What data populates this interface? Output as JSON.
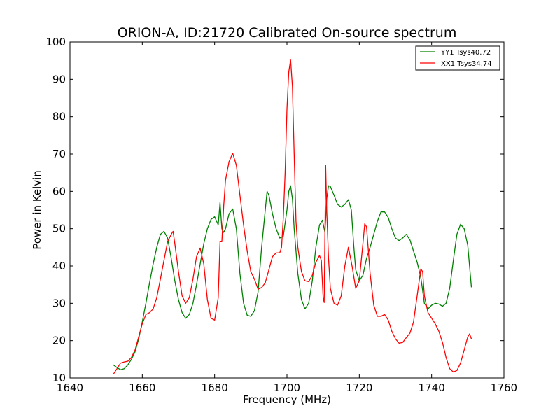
{
  "chart_data": {
    "type": "line",
    "title": "ORION-A, ID:21720 Calibrated On-source spectrum",
    "xlabel": "Frequency (MHz)",
    "ylabel": "Power in Kelvin",
    "xlim": [
      1640,
      1760
    ],
    "ylim": [
      10,
      100
    ],
    "xticks": [
      1640,
      1660,
      1680,
      1700,
      1720,
      1740,
      1760
    ],
    "yticks": [
      10,
      20,
      30,
      40,
      50,
      60,
      70,
      80,
      90,
      100
    ],
    "grid": false,
    "legend_position": "top-right",
    "series": [
      {
        "name": "YY1 Tsys40.72",
        "color": "#008000",
        "points": [
          [
            1652,
            13.5
          ],
          [
            1653,
            12.8
          ],
          [
            1654,
            12.2
          ],
          [
            1655,
            12.5
          ],
          [
            1656,
            13.5
          ],
          [
            1657,
            15.0
          ],
          [
            1658,
            17.0
          ],
          [
            1659,
            20.5
          ],
          [
            1660,
            25.0
          ],
          [
            1661,
            30.0
          ],
          [
            1662,
            35.5
          ],
          [
            1663,
            40.5
          ],
          [
            1664,
            45.0
          ],
          [
            1665,
            48.5
          ],
          [
            1666,
            49.3
          ],
          [
            1667,
            47.5
          ],
          [
            1668,
            42.0
          ],
          [
            1669,
            36.0
          ],
          [
            1670,
            31.0
          ],
          [
            1671,
            27.5
          ],
          [
            1672,
            26.0
          ],
          [
            1673,
            27.0
          ],
          [
            1674,
            30.0
          ],
          [
            1675,
            35.0
          ],
          [
            1676,
            40.5
          ],
          [
            1677,
            46.0
          ],
          [
            1678,
            50.0
          ],
          [
            1679,
            52.5
          ],
          [
            1680,
            53.2
          ],
          [
            1681,
            51.0
          ],
          [
            1681.5,
            57.0
          ],
          [
            1682,
            50.0
          ],
          [
            1682.5,
            49.0
          ],
          [
            1683,
            50.0
          ],
          [
            1684,
            54.0
          ],
          [
            1685,
            55.3
          ],
          [
            1686,
            50.0
          ],
          [
            1687,
            38.0
          ],
          [
            1688,
            30.0
          ],
          [
            1689,
            26.8
          ],
          [
            1690,
            26.5
          ],
          [
            1691,
            28.0
          ],
          [
            1692,
            33.0
          ],
          [
            1693,
            45.0
          ],
          [
            1694,
            55.0
          ],
          [
            1694.5,
            60.0
          ],
          [
            1695,
            59.0
          ],
          [
            1696,
            54.0
          ],
          [
            1697,
            50.0
          ],
          [
            1698,
            47.5
          ],
          [
            1699,
            48.0
          ],
          [
            1700,
            55.0
          ],
          [
            1700.5,
            60.0
          ],
          [
            1701,
            61.5
          ],
          [
            1701.5,
            58.0
          ],
          [
            1702,
            50.0
          ],
          [
            1703,
            38.0
          ],
          [
            1704,
            31.0
          ],
          [
            1705,
            28.5
          ],
          [
            1706,
            30.0
          ],
          [
            1707,
            36.0
          ],
          [
            1708,
            45.0
          ],
          [
            1709,
            51.0
          ],
          [
            1709.8,
            52.3
          ],
          [
            1710.5,
            49.0
          ],
          [
            1711,
            58.0
          ],
          [
            1711.5,
            61.5
          ],
          [
            1712,
            61.3
          ],
          [
            1713,
            59.0
          ],
          [
            1714,
            56.5
          ],
          [
            1715,
            55.8
          ],
          [
            1716,
            56.5
          ],
          [
            1717,
            57.8
          ],
          [
            1717.8,
            55.0
          ],
          [
            1718.5,
            45.0
          ],
          [
            1719,
            39.0
          ],
          [
            1720,
            36.0
          ],
          [
            1721,
            37.5
          ],
          [
            1722,
            42.0
          ],
          [
            1723,
            45.0
          ],
          [
            1724,
            48.5
          ],
          [
            1725,
            52.0
          ],
          [
            1726,
            54.5
          ],
          [
            1727,
            54.5
          ],
          [
            1728,
            53.0
          ],
          [
            1729,
            50.0
          ],
          [
            1730,
            47.5
          ],
          [
            1731,
            46.8
          ],
          [
            1732,
            47.5
          ],
          [
            1733,
            48.5
          ],
          [
            1734,
            47.0
          ],
          [
            1735,
            44.0
          ],
          [
            1736,
            41.0
          ],
          [
            1737,
            37.0
          ],
          [
            1738,
            30.0
          ],
          [
            1739,
            28.5
          ],
          [
            1740,
            29.5
          ],
          [
            1741,
            30.0
          ],
          [
            1742,
            29.8
          ],
          [
            1743,
            29.2
          ],
          [
            1744,
            30.0
          ],
          [
            1745,
            34.0
          ],
          [
            1746,
            41.5
          ],
          [
            1747,
            48.5
          ],
          [
            1748,
            51.2
          ],
          [
            1749,
            50.0
          ],
          [
            1750,
            45.5
          ],
          [
            1751,
            34.3
          ]
        ]
      },
      {
        "name": "XX1 Tsys34.74",
        "color": "#ff0000",
        "points": [
          [
            1652,
            11.0
          ],
          [
            1653,
            12.5
          ],
          [
            1654,
            14.0
          ],
          [
            1655,
            14.3
          ],
          [
            1656,
            14.5
          ],
          [
            1657,
            15.5
          ],
          [
            1658,
            17.5
          ],
          [
            1659,
            21.0
          ],
          [
            1660,
            24.5
          ],
          [
            1661,
            27.0
          ],
          [
            1662,
            27.5
          ],
          [
            1663,
            28.5
          ],
          [
            1664,
            31.5
          ],
          [
            1665,
            36.5
          ],
          [
            1666,
            41.5
          ],
          [
            1667,
            46.5
          ],
          [
            1668,
            48.5
          ],
          [
            1668.5,
            49.3
          ],
          [
            1669,
            46.0
          ],
          [
            1670,
            38.5
          ],
          [
            1671,
            32.0
          ],
          [
            1672,
            30.0
          ],
          [
            1673,
            31.5
          ],
          [
            1674,
            36.5
          ],
          [
            1675,
            42.5
          ],
          [
            1676,
            44.8
          ],
          [
            1677,
            40.5
          ],
          [
            1678,
            31.0
          ],
          [
            1679,
            26.0
          ],
          [
            1680,
            25.5
          ],
          [
            1681,
            31.5
          ],
          [
            1681.5,
            46.5
          ],
          [
            1682,
            46.5
          ],
          [
            1682.5,
            56.0
          ],
          [
            1683,
            63.0
          ],
          [
            1684,
            68.0
          ],
          [
            1685,
            70.2
          ],
          [
            1686,
            67.0
          ],
          [
            1687,
            59.0
          ],
          [
            1688,
            51.0
          ],
          [
            1689,
            44.0
          ],
          [
            1690,
            38.5
          ],
          [
            1691,
            36.5
          ],
          [
            1692,
            33.8
          ],
          [
            1693,
            34.2
          ],
          [
            1694,
            35.5
          ],
          [
            1695,
            39.0
          ],
          [
            1696,
            42.5
          ],
          [
            1697,
            43.5
          ],
          [
            1698,
            43.5
          ],
          [
            1698.5,
            45.0
          ],
          [
            1699,
            53.0
          ],
          [
            1699.5,
            65.0
          ],
          [
            1700,
            82.0
          ],
          [
            1700.5,
            92.0
          ],
          [
            1701,
            95.2
          ],
          [
            1701.5,
            88.0
          ],
          [
            1702,
            70.0
          ],
          [
            1702.5,
            52.0
          ],
          [
            1703,
            45.0
          ],
          [
            1704,
            38.5
          ],
          [
            1705,
            36.0
          ],
          [
            1706,
            35.8
          ],
          [
            1707,
            37.5
          ],
          [
            1708,
            41.0
          ],
          [
            1709,
            42.8
          ],
          [
            1709.5,
            41.5
          ],
          [
            1710,
            31.5
          ],
          [
            1710.3,
            30.2
          ],
          [
            1710.7,
            67.0
          ],
          [
            1711,
            55.0
          ],
          [
            1711.5,
            42.0
          ],
          [
            1712,
            34.0
          ],
          [
            1713,
            30.0
          ],
          [
            1714,
            29.5
          ],
          [
            1715,
            32.0
          ],
          [
            1716,
            40.0
          ],
          [
            1717,
            45.0
          ],
          [
            1718,
            40.0
          ],
          [
            1719,
            34.0
          ],
          [
            1720,
            36.0
          ],
          [
            1721,
            46.0
          ],
          [
            1721.5,
            51.3
          ],
          [
            1722,
            50.5
          ],
          [
            1723,
            38.0
          ],
          [
            1724,
            29.5
          ],
          [
            1725,
            26.5
          ],
          [
            1726,
            26.5
          ],
          [
            1727,
            27.0
          ],
          [
            1728,
            25.5
          ],
          [
            1729,
            22.5
          ],
          [
            1730,
            20.5
          ],
          [
            1731,
            19.3
          ],
          [
            1732,
            19.5
          ],
          [
            1733,
            20.8
          ],
          [
            1734,
            22.0
          ],
          [
            1735,
            25.0
          ],
          [
            1736,
            32.0
          ],
          [
            1737,
            39.2
          ],
          [
            1737.5,
            38.5
          ],
          [
            1738,
            32.0
          ],
          [
            1739,
            27.5
          ],
          [
            1740,
            26.0
          ],
          [
            1741,
            24.5
          ],
          [
            1742,
            22.5
          ],
          [
            1743,
            19.5
          ],
          [
            1744,
            15.5
          ],
          [
            1745,
            12.5
          ],
          [
            1746,
            11.6
          ],
          [
            1747,
            12.0
          ],
          [
            1748,
            14.0
          ],
          [
            1749,
            17.5
          ],
          [
            1750,
            21.0
          ],
          [
            1750.5,
            21.8
          ],
          [
            1751,
            20.5
          ]
        ]
      }
    ]
  }
}
